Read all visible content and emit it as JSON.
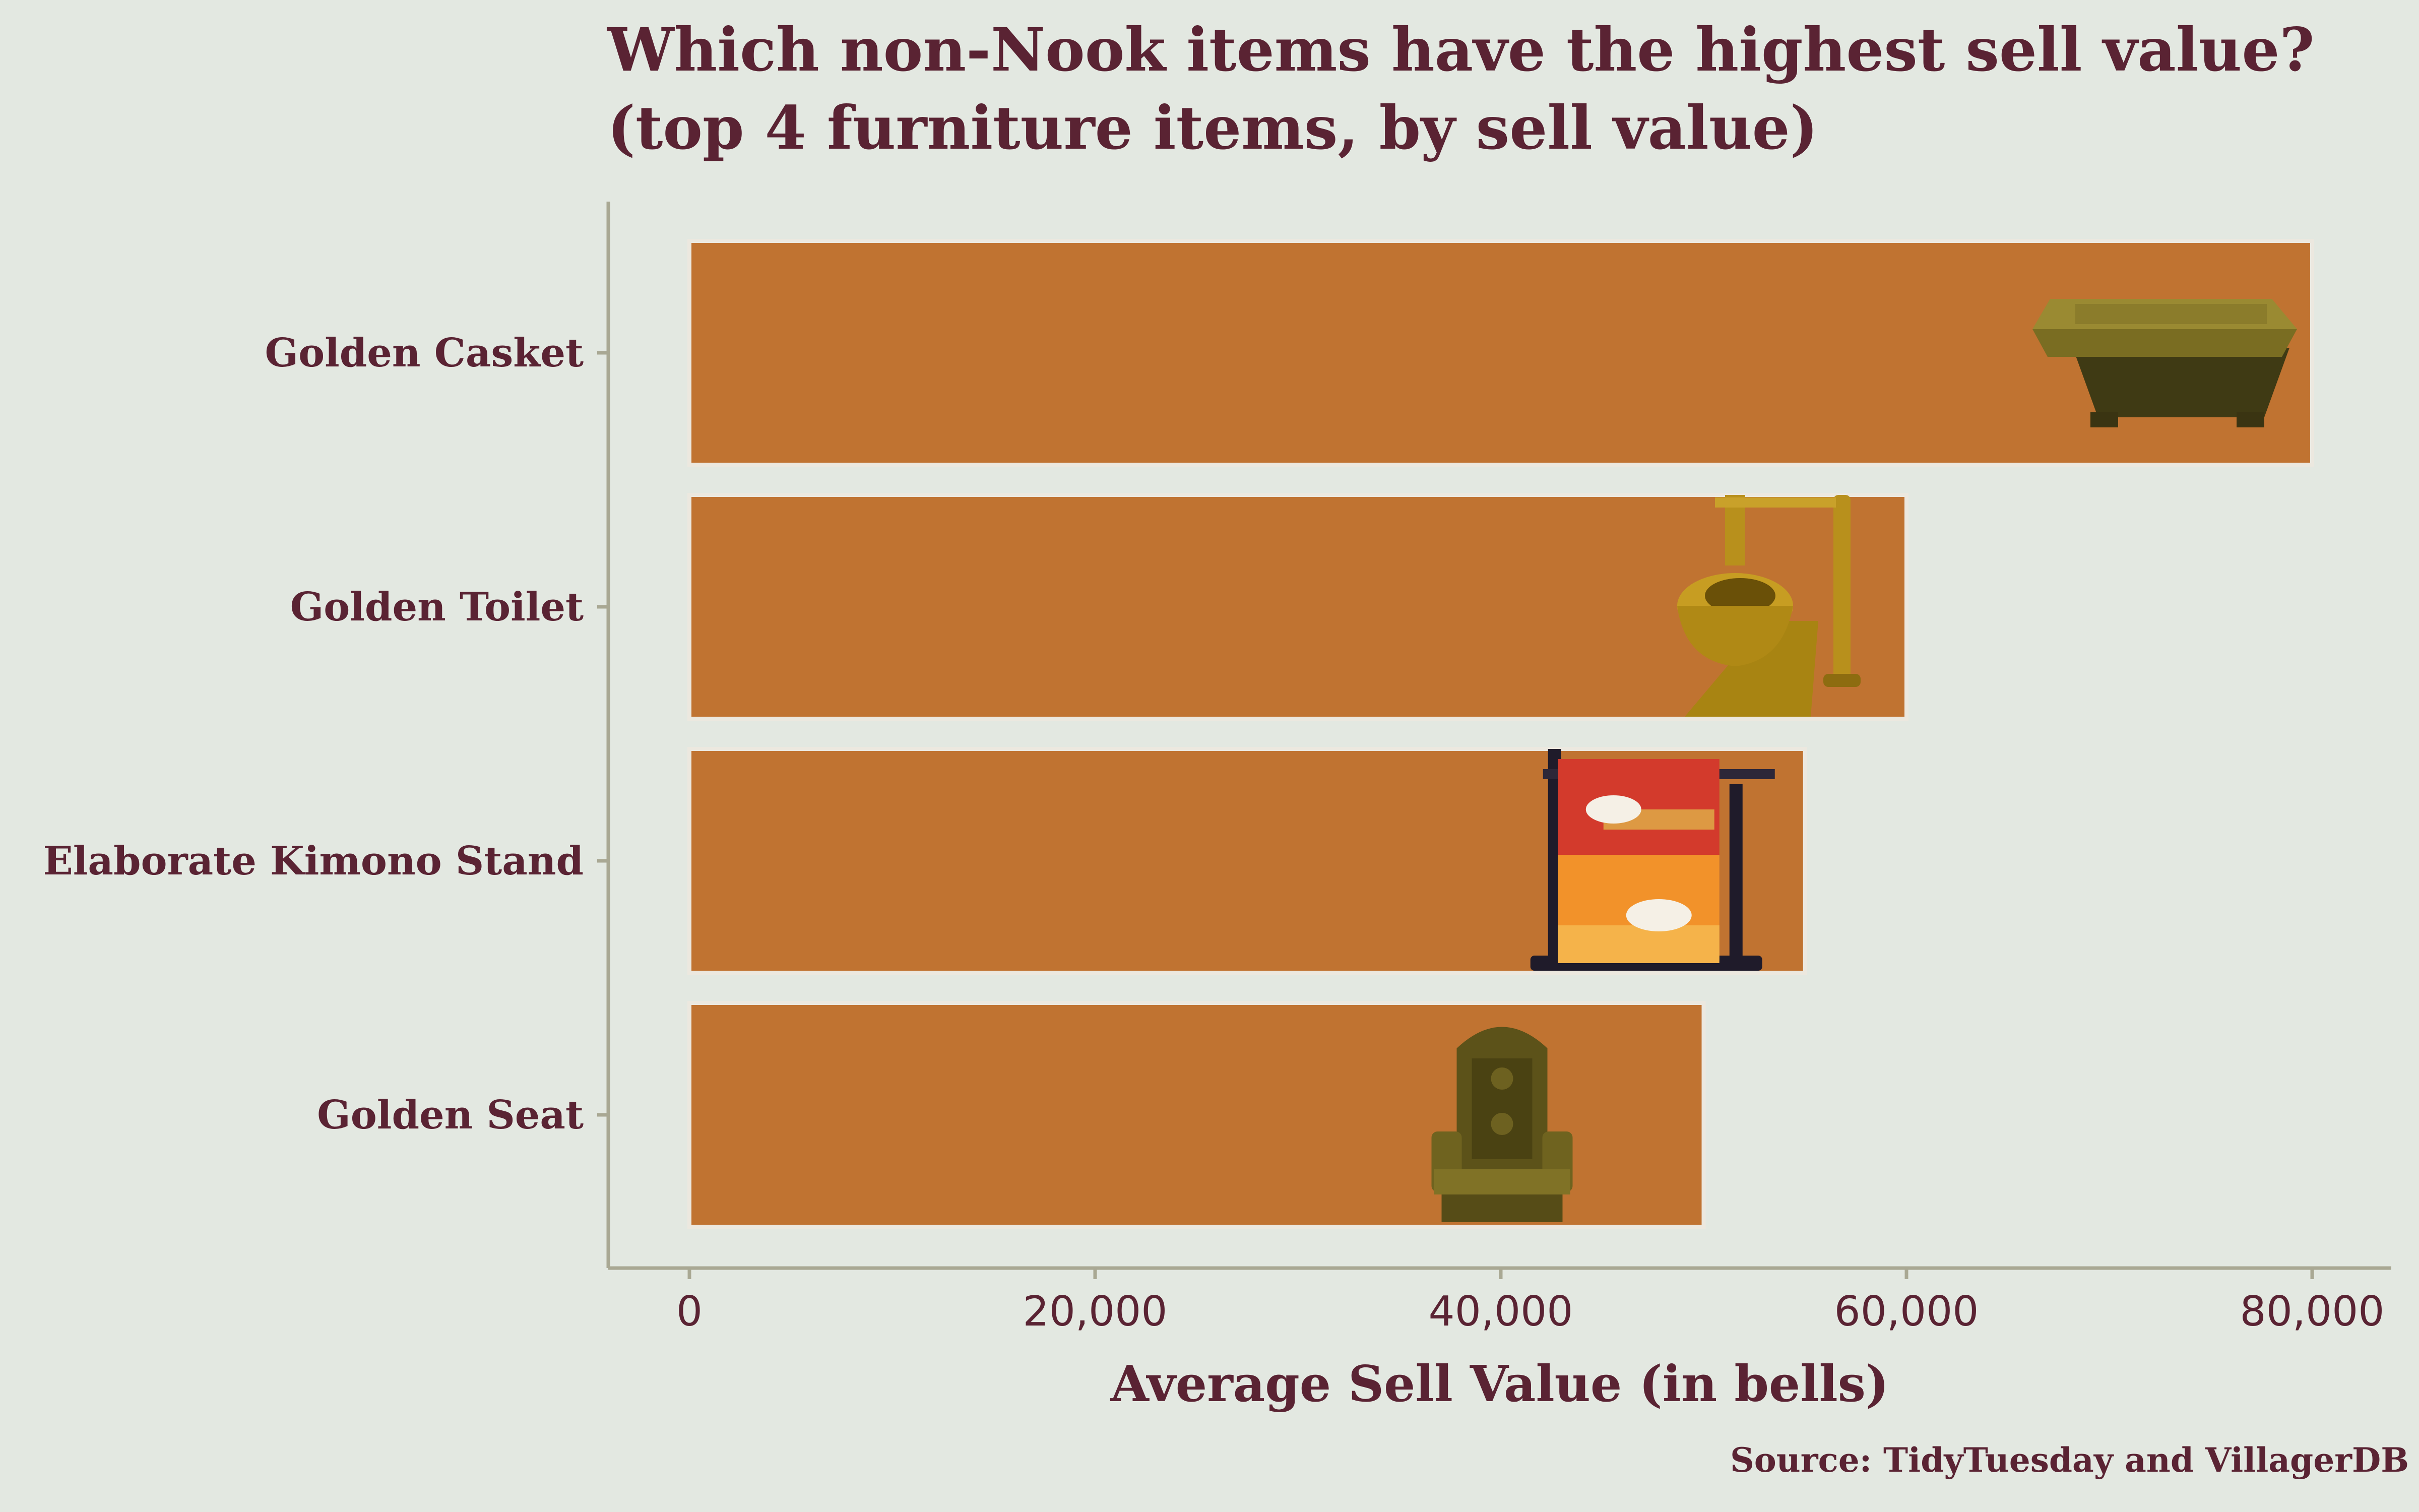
{
  "colors": {
    "background": "#e3e8e1",
    "bar": "#c07331",
    "bar_outline": "#ece8df",
    "text": "#5a2333",
    "axis": "#a9a893"
  },
  "chart_data": {
    "type": "bar",
    "orientation": "horizontal",
    "title": [
      "Which non-Nook items have the highest sell value?",
      "(top 4 furniture items, by sell value)"
    ],
    "categories": [
      "Golden Casket",
      "Golden Toilet",
      "Elaborate Kimono Stand",
      "Golden Seat"
    ],
    "values": [
      80000,
      60000,
      55000,
      50000
    ],
    "item_icons": [
      "golden-casket-icon",
      "golden-toilet-icon",
      "kimono-stand-icon",
      "golden-seat-icon"
    ],
    "xlabel": "Average Sell Value (in bells)",
    "ylabel": "",
    "xlim": [
      0,
      80000
    ],
    "x_ticks": [
      0,
      20000,
      40000,
      60000,
      80000
    ],
    "x_tick_labels": [
      "0",
      "20,000",
      "40,000",
      "60,000",
      "80,000"
    ],
    "grid": false,
    "legend": "none",
    "caption": "Source: TidyTuesday and VillagerDB"
  }
}
